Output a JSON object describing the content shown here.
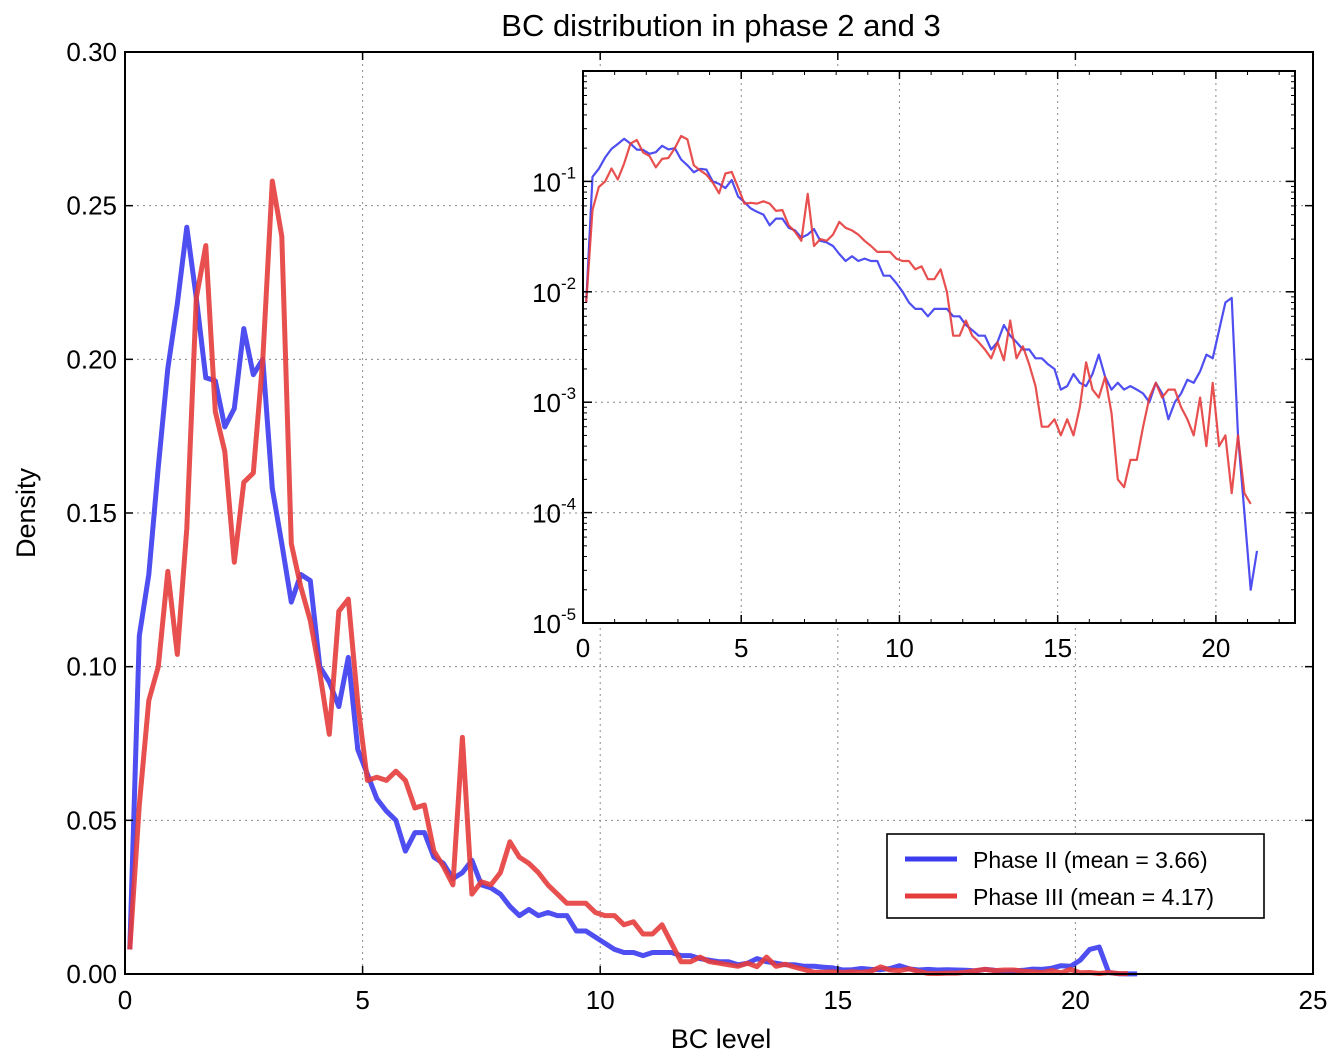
{
  "chart_data": [
    {
      "type": "line",
      "title": "BC distribution in phase 2 and 3",
      "xlabel": "BC level",
      "ylabel": "Density",
      "xlim": [
        0,
        25
      ],
      "ylim": [
        0,
        0.3
      ],
      "xticks": [
        "0",
        "5",
        "10",
        "15",
        "20",
        "25"
      ],
      "yticks": [
        "0.00",
        "0.05",
        "0.10",
        "0.15",
        "0.20",
        "0.25",
        "0.30"
      ],
      "grid": true,
      "legend_position": "lower-right",
      "series": [
        {
          "name": "Phase II (mean = 3.66)",
          "color": "#3b3bef",
          "x": [
            0.1,
            0.3,
            0.5,
            0.7,
            0.9,
            1.1,
            1.3,
            1.5,
            1.7,
            1.9,
            2.1,
            2.3,
            2.5,
            2.7,
            2.9,
            3.1,
            3.3,
            3.5,
            3.7,
            3.9,
            4.1,
            4.3,
            4.5,
            4.7,
            4.9,
            5.1,
            5.3,
            5.5,
            5.7,
            5.9,
            6.1,
            6.3,
            6.5,
            6.7,
            6.9,
            7.1,
            7.3,
            7.5,
            7.7,
            7.9,
            8.1,
            8.3,
            8.5,
            8.7,
            8.9,
            9.1,
            9.3,
            9.5,
            9.7,
            9.9,
            10.1,
            10.3,
            10.5,
            10.7,
            10.9,
            11.1,
            11.3,
            11.5,
            11.7,
            11.9,
            12.1,
            12.3,
            12.5,
            12.7,
            12.9,
            13.1,
            13.3,
            13.5,
            13.7,
            13.9,
            14.1,
            14.3,
            14.5,
            14.7,
            14.9,
            15.1,
            15.3,
            15.5,
            15.7,
            15.9,
            16.1,
            16.3,
            16.5,
            16.7,
            16.9,
            17.1,
            17.3,
            17.5,
            17.7,
            17.9,
            18.1,
            18.3,
            18.5,
            18.7,
            18.9,
            19.1,
            19.3,
            19.5,
            19.7,
            19.9,
            20.1,
            20.3,
            20.5,
            20.7,
            20.9,
            21.1,
            21.3
          ],
          "values": [
            0.008,
            0.11,
            0.13,
            0.165,
            0.197,
            0.218,
            0.243,
            0.22,
            0.194,
            0.193,
            0.178,
            0.184,
            0.21,
            0.195,
            0.2,
            0.158,
            0.14,
            0.121,
            0.13,
            0.128,
            0.1,
            0.095,
            0.087,
            0.103,
            0.073,
            0.065,
            0.057,
            0.053,
            0.05,
            0.04,
            0.046,
            0.046,
            0.038,
            0.036,
            0.031,
            0.033,
            0.037,
            0.029,
            0.028,
            0.026,
            0.022,
            0.019,
            0.021,
            0.019,
            0.02,
            0.019,
            0.019,
            0.014,
            0.014,
            0.012,
            0.01,
            0.008,
            0.007,
            0.007,
            0.006,
            0.007,
            0.007,
            0.007,
            0.006,
            0.006,
            0.005,
            0.0045,
            0.004,
            0.004,
            0.003,
            0.0035,
            0.005,
            0.004,
            0.0035,
            0.003,
            0.003,
            0.0025,
            0.0025,
            0.0022,
            0.002,
            0.0013,
            0.0014,
            0.0018,
            0.0015,
            0.0014,
            0.0018,
            0.0027,
            0.0017,
            0.0013,
            0.0015,
            0.0013,
            0.0014,
            0.0013,
            0.0012,
            0.001,
            0.0015,
            0.0012,
            0.0007,
            0.001,
            0.0012,
            0.0016,
            0.0015,
            0.0019,
            0.0027,
            0.0025,
            0.0045,
            0.008,
            0.0088,
            0.0005,
            0.0001,
            2e-05,
            4.5e-05
          ]
        },
        {
          "name": "Phase III (mean = 4.17)",
          "color": "#e63c3c",
          "x": [
            0.1,
            0.3,
            0.5,
            0.7,
            0.9,
            1.1,
            1.3,
            1.5,
            1.7,
            1.9,
            2.1,
            2.3,
            2.5,
            2.7,
            2.9,
            3.1,
            3.3,
            3.5,
            3.7,
            3.9,
            4.1,
            4.3,
            4.5,
            4.7,
            4.9,
            5.1,
            5.3,
            5.5,
            5.7,
            5.9,
            6.1,
            6.3,
            6.5,
            6.7,
            6.9,
            7.1,
            7.3,
            7.5,
            7.7,
            7.9,
            8.1,
            8.3,
            8.5,
            8.7,
            8.9,
            9.1,
            9.3,
            9.5,
            9.7,
            9.9,
            10.1,
            10.3,
            10.5,
            10.7,
            10.9,
            11.1,
            11.3,
            11.5,
            11.7,
            11.9,
            12.1,
            12.3,
            12.5,
            12.7,
            12.9,
            13.1,
            13.3,
            13.5,
            13.7,
            13.9,
            14.1,
            14.3,
            14.5,
            14.7,
            14.9,
            15.1,
            15.3,
            15.5,
            15.7,
            15.9,
            16.1,
            16.3,
            16.5,
            16.7,
            16.9,
            17.1,
            17.3,
            17.5,
            17.7,
            17.9,
            18.1,
            18.3,
            18.5,
            18.7,
            18.9,
            19.1,
            19.3,
            19.5,
            19.7,
            19.9,
            20.1,
            20.3,
            20.5,
            20.7,
            20.9,
            21.1
          ],
          "values": [
            0.008,
            0.055,
            0.089,
            0.1,
            0.131,
            0.104,
            0.145,
            0.22,
            0.237,
            0.183,
            0.17,
            0.134,
            0.16,
            0.163,
            0.2,
            0.258,
            0.24,
            0.14,
            0.126,
            0.115,
            0.098,
            0.078,
            0.118,
            0.122,
            0.088,
            0.063,
            0.064,
            0.063,
            0.066,
            0.063,
            0.054,
            0.055,
            0.04,
            0.035,
            0.029,
            0.077,
            0.026,
            0.03,
            0.029,
            0.033,
            0.043,
            0.038,
            0.036,
            0.033,
            0.029,
            0.026,
            0.023,
            0.023,
            0.023,
            0.02,
            0.019,
            0.019,
            0.016,
            0.017,
            0.013,
            0.013,
            0.016,
            0.01,
            0.004,
            0.004,
            0.0055,
            0.004,
            0.0035,
            0.003,
            0.0025,
            0.0035,
            0.0024,
            0.0055,
            0.0025,
            0.0032,
            0.0022,
            0.0014,
            0.0006,
            0.0006,
            0.0007,
            0.0005,
            0.0007,
            0.0005,
            0.0009,
            0.0023,
            0.0013,
            0.0011,
            0.0017,
            0.0008,
            0.0002,
            0.00017,
            0.0003,
            0.0003,
            0.0006,
            0.0011,
            0.0015,
            0.0011,
            0.0013,
            0.0013,
            0.0009,
            0.0007,
            0.0005,
            0.0011,
            0.0004,
            0.0015,
            0.0004,
            0.0005,
            0.00015,
            0.0005,
            0.00015,
            0.00012
          ]
        }
      ]
    },
    {
      "type": "line",
      "title": "",
      "xlabel": "",
      "ylabel": "",
      "xlim": [
        0,
        22.5
      ],
      "ylim": [
        1e-05,
        1
      ],
      "yscale": "log",
      "xticks": [
        "0",
        "5",
        "10",
        "15",
        "20"
      ],
      "yticks": [
        {
          "base": "10",
          "exp": "-5"
        },
        {
          "base": "10",
          "exp": "-4"
        },
        {
          "base": "10",
          "exp": "-3"
        },
        {
          "base": "10",
          "exp": "-2"
        },
        {
          "base": "10",
          "exp": "-1"
        }
      ],
      "grid": true,
      "series_ref": "same as main chart"
    }
  ]
}
